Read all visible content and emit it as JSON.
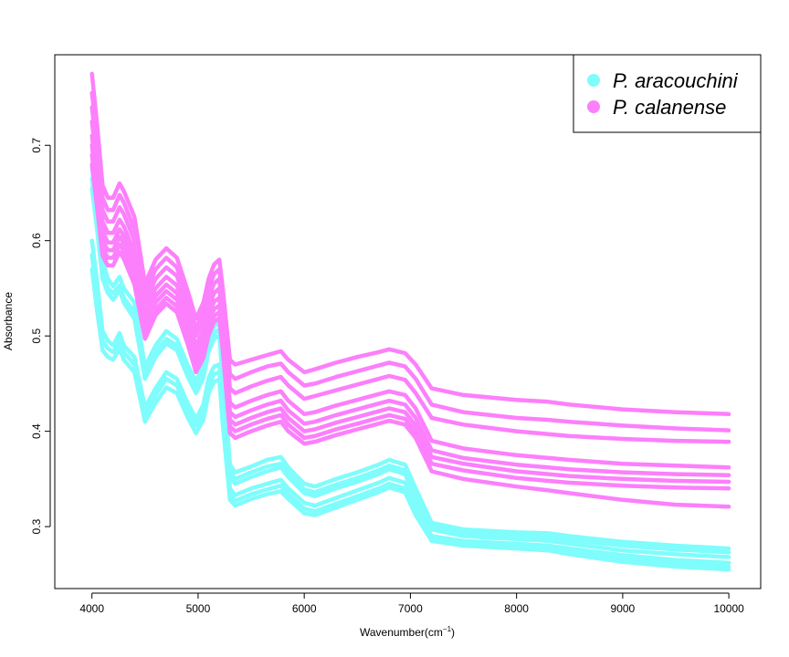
{
  "chart_data": {
    "type": "line",
    "title": "",
    "xlabel": "Wavenumber(cm",
    "xlabel_sup": "−1",
    "xlabel_close": ")",
    "ylabel": "Absorbance",
    "xlim": [
      3650,
      10300
    ],
    "ylim": [
      0.235,
      0.795
    ],
    "xticks": [
      4000,
      5000,
      6000,
      7000,
      8000,
      9000,
      10000
    ],
    "yticks": [
      0.3,
      0.4,
      0.5,
      0.6,
      0.7
    ],
    "xtick_labels": [
      "4000",
      "5000",
      "6000",
      "7000",
      "8000",
      "9000",
      "10000"
    ],
    "ytick_labels": [
      "0.3",
      "0.4",
      "0.5",
      "0.6",
      "0.7"
    ],
    "grid": false,
    "legend_position": "top-right",
    "x": [
      4000,
      4050,
      4100,
      4150,
      4200,
      4260,
      4300,
      4400,
      4500,
      4600,
      4700,
      4800,
      4900,
      4980,
      5050,
      5100,
      5150,
      5200,
      5230,
      5300,
      5350,
      5500,
      5650,
      5780,
      5850,
      6000,
      6100,
      6300,
      6500,
      6700,
      6800,
      6950,
      7050,
      7200,
      7500,
      8000,
      8300,
      8500,
      9000,
      9500,
      10000
    ],
    "series": [
      {
        "name": "P. aracouchini",
        "color": "#7ffcfc",
        "values": [
          0.678,
          0.63,
          0.58,
          0.56,
          0.552,
          0.562,
          0.55,
          0.535,
          0.468,
          0.49,
          0.505,
          0.497,
          0.47,
          0.452,
          0.47,
          0.497,
          0.51,
          0.515,
          0.47,
          0.365,
          0.357,
          0.363,
          0.37,
          0.373,
          0.362,
          0.345,
          0.342,
          0.35,
          0.357,
          0.365,
          0.37,
          0.365,
          0.34,
          0.304,
          0.297,
          0.294,
          0.293,
          0.29,
          0.284,
          0.28,
          0.277
        ]
      },
      {
        "name": "P. aracouchini",
        "color": "#7ffcfc",
        "values": [
          0.665,
          0.62,
          0.568,
          0.55,
          0.545,
          0.553,
          0.54,
          0.525,
          0.46,
          0.483,
          0.497,
          0.49,
          0.463,
          0.445,
          0.462,
          0.49,
          0.503,
          0.507,
          0.46,
          0.358,
          0.35,
          0.357,
          0.363,
          0.366,
          0.356,
          0.339,
          0.336,
          0.344,
          0.351,
          0.359,
          0.364,
          0.359,
          0.334,
          0.3,
          0.293,
          0.29,
          0.289,
          0.286,
          0.28,
          0.276,
          0.273
        ]
      },
      {
        "name": "P. aracouchini",
        "color": "#7ffcfc",
        "values": [
          0.655,
          0.61,
          0.56,
          0.545,
          0.538,
          0.548,
          0.535,
          0.518,
          0.455,
          0.478,
          0.492,
          0.485,
          0.458,
          0.44,
          0.456,
          0.484,
          0.497,
          0.501,
          0.455,
          0.352,
          0.345,
          0.352,
          0.358,
          0.362,
          0.352,
          0.335,
          0.332,
          0.34,
          0.347,
          0.355,
          0.36,
          0.355,
          0.33,
          0.297,
          0.29,
          0.287,
          0.285,
          0.282,
          0.275,
          0.271,
          0.268
        ]
      },
      {
        "name": "P. aracouchini",
        "color": "#7ffcfc",
        "values": [
          0.6,
          0.555,
          0.505,
          0.495,
          0.49,
          0.503,
          0.49,
          0.478,
          0.425,
          0.445,
          0.462,
          0.455,
          0.43,
          0.413,
          0.428,
          0.456,
          0.468,
          0.47,
          0.425,
          0.34,
          0.333,
          0.34,
          0.345,
          0.349,
          0.34,
          0.325,
          0.322,
          0.33,
          0.338,
          0.346,
          0.351,
          0.346,
          0.322,
          0.29,
          0.285,
          0.282,
          0.28,
          0.277,
          0.27,
          0.265,
          0.262
        ]
      },
      {
        "name": "P. aracouchini",
        "color": "#7ffcfc",
        "values": [
          0.585,
          0.54,
          0.495,
          0.487,
          0.483,
          0.495,
          0.483,
          0.47,
          0.418,
          0.438,
          0.455,
          0.448,
          0.423,
          0.406,
          0.42,
          0.448,
          0.46,
          0.462,
          0.418,
          0.333,
          0.327,
          0.334,
          0.339,
          0.343,
          0.334,
          0.319,
          0.316,
          0.324,
          0.332,
          0.34,
          0.345,
          0.34,
          0.316,
          0.287,
          0.282,
          0.279,
          0.277,
          0.273,
          0.266,
          0.261,
          0.258
        ]
      },
      {
        "name": "P. aracouchini",
        "color": "#7ffcfc",
        "values": [
          0.57,
          0.525,
          0.485,
          0.478,
          0.475,
          0.487,
          0.475,
          0.462,
          0.41,
          0.43,
          0.446,
          0.44,
          0.415,
          0.398,
          0.412,
          0.44,
          0.452,
          0.454,
          0.41,
          0.328,
          0.322,
          0.329,
          0.334,
          0.337,
          0.329,
          0.314,
          0.312,
          0.32,
          0.328,
          0.336,
          0.341,
          0.336,
          0.312,
          0.285,
          0.28,
          0.277,
          0.275,
          0.271,
          0.263,
          0.258,
          0.255
        ]
      },
      {
        "name": "P. calanense",
        "color": "#fc7ffc",
        "values": [
          0.775,
          0.72,
          0.658,
          0.645,
          0.645,
          0.66,
          0.652,
          0.625,
          0.555,
          0.58,
          0.592,
          0.582,
          0.548,
          0.518,
          0.535,
          0.56,
          0.575,
          0.58,
          0.552,
          0.475,
          0.47,
          0.475,
          0.48,
          0.484,
          0.475,
          0.462,
          0.465,
          0.472,
          0.478,
          0.483,
          0.486,
          0.482,
          0.47,
          0.445,
          0.438,
          0.433,
          0.431,
          0.428,
          0.423,
          0.42,
          0.418
        ]
      },
      {
        "name": "P. calanense",
        "color": "#fc7ffc",
        "values": [
          0.755,
          0.705,
          0.645,
          0.632,
          0.632,
          0.648,
          0.64,
          0.612,
          0.545,
          0.57,
          0.582,
          0.572,
          0.538,
          0.508,
          0.525,
          0.55,
          0.565,
          0.57,
          0.54,
          0.46,
          0.455,
          0.462,
          0.468,
          0.471,
          0.462,
          0.448,
          0.45,
          0.457,
          0.463,
          0.469,
          0.472,
          0.468,
          0.455,
          0.428,
          0.42,
          0.414,
          0.412,
          0.41,
          0.406,
          0.403,
          0.401
        ]
      },
      {
        "name": "P. calanense",
        "color": "#fc7ffc",
        "values": [
          0.74,
          0.69,
          0.632,
          0.62,
          0.62,
          0.635,
          0.628,
          0.6,
          0.535,
          0.56,
          0.572,
          0.563,
          0.53,
          0.5,
          0.516,
          0.54,
          0.555,
          0.56,
          0.528,
          0.445,
          0.44,
          0.447,
          0.453,
          0.457,
          0.448,
          0.434,
          0.437,
          0.443,
          0.449,
          0.455,
          0.458,
          0.454,
          0.44,
          0.414,
          0.407,
          0.4,
          0.397,
          0.395,
          0.392,
          0.39,
          0.389
        ]
      },
      {
        "name": "P. calanense",
        "color": "#fc7ffc",
        "values": [
          0.725,
          0.675,
          0.62,
          0.608,
          0.608,
          0.622,
          0.615,
          0.588,
          0.525,
          0.55,
          0.562,
          0.553,
          0.52,
          0.49,
          0.506,
          0.53,
          0.545,
          0.55,
          0.518,
          0.43,
          0.425,
          0.432,
          0.438,
          0.442,
          0.432,
          0.418,
          0.42,
          0.427,
          0.433,
          0.439,
          0.442,
          0.438,
          0.424,
          0.39,
          0.382,
          0.375,
          0.372,
          0.37,
          0.366,
          0.364,
          0.362
        ]
      },
      {
        "name": "P. calanense",
        "color": "#fc7ffc",
        "values": [
          0.71,
          0.662,
          0.61,
          0.598,
          0.598,
          0.612,
          0.605,
          0.578,
          0.518,
          0.542,
          0.554,
          0.545,
          0.512,
          0.482,
          0.498,
          0.522,
          0.536,
          0.54,
          0.508,
          0.42,
          0.415,
          0.422,
          0.428,
          0.432,
          0.422,
          0.408,
          0.41,
          0.417,
          0.423,
          0.429,
          0.432,
          0.428,
          0.414,
          0.38,
          0.372,
          0.365,
          0.362,
          0.36,
          0.357,
          0.355,
          0.354
        ]
      },
      {
        "name": "P. calanense",
        "color": "#fc7ffc",
        "values": [
          0.7,
          0.652,
          0.6,
          0.59,
          0.59,
          0.604,
          0.597,
          0.57,
          0.51,
          0.535,
          0.547,
          0.538,
          0.505,
          0.475,
          0.49,
          0.514,
          0.528,
          0.532,
          0.5,
          0.412,
          0.407,
          0.414,
          0.42,
          0.424,
          0.414,
          0.4,
          0.402,
          0.409,
          0.415,
          0.421,
          0.424,
          0.42,
          0.406,
          0.373,
          0.366,
          0.358,
          0.355,
          0.353,
          0.35,
          0.348,
          0.347
        ]
      },
      {
        "name": "P. calanense",
        "color": "#fc7ffc",
        "values": [
          0.69,
          0.642,
          0.592,
          0.582,
          0.582,
          0.596,
          0.589,
          0.562,
          0.503,
          0.528,
          0.54,
          0.531,
          0.498,
          0.468,
          0.483,
          0.507,
          0.521,
          0.525,
          0.493,
          0.405,
          0.4,
          0.407,
          0.413,
          0.417,
          0.407,
          0.393,
          0.395,
          0.402,
          0.408,
          0.414,
          0.417,
          0.413,
          0.399,
          0.366,
          0.359,
          0.351,
          0.348,
          0.346,
          0.343,
          0.341,
          0.34
        ]
      },
      {
        "name": "P. calanense",
        "color": "#fc7ffc",
        "values": [
          0.68,
          0.633,
          0.584,
          0.574,
          0.574,
          0.588,
          0.581,
          0.554,
          0.497,
          0.522,
          0.534,
          0.525,
          0.492,
          0.462,
          0.477,
          0.501,
          0.515,
          0.519,
          0.487,
          0.398,
          0.393,
          0.4,
          0.406,
          0.41,
          0.4,
          0.387,
          0.389,
          0.396,
          0.402,
          0.408,
          0.411,
          0.407,
          0.393,
          0.358,
          0.35,
          0.342,
          0.338,
          0.335,
          0.328,
          0.323,
          0.321
        ]
      }
    ]
  },
  "legend": {
    "items": [
      {
        "label": "P. aracouchini",
        "color": "#7ffcfc"
      },
      {
        "label": "P. calanense",
        "color": "#fc7ffc"
      }
    ]
  }
}
